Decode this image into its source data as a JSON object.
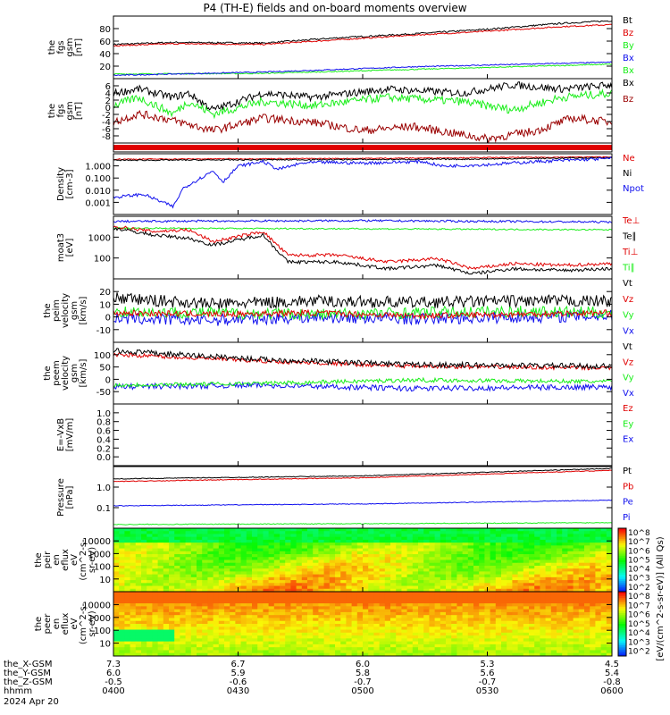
{
  "title": "P4 (TH-E) fields and on-board moments overview",
  "colors": {
    "black": "#000000",
    "red": "#e00000",
    "darkred": "#9a0000",
    "green": "#1aee1a",
    "blue": "#1010ee"
  },
  "chart_data": [
    {
      "id": "p1",
      "type": "line",
      "ylabel": [
        "the",
        "fgs",
        "gsm",
        "[nT]"
      ],
      "yticks": [
        "20",
        "40",
        "60",
        "80"
      ],
      "yrange": [
        0,
        95
      ],
      "legend": [
        {
          "name": "Bt",
          "color": "black"
        },
        {
          "name": "Bz",
          "color": "red"
        },
        {
          "name": "By",
          "color": "green"
        },
        {
          "name": "Bx",
          "color": "blue"
        },
        {
          "name": "Bx",
          "color": "green"
        }
      ],
      "series": [
        {
          "name": "Bt",
          "color": "black",
          "x": [
            0,
            0.12,
            0.3,
            0.45,
            0.6,
            0.75,
            0.9,
            1
          ],
          "y": [
            52,
            55,
            54,
            62,
            68,
            75,
            84,
            88
          ],
          "noise": 1.2
        },
        {
          "name": "Bz",
          "color": "red",
          "x": [
            0,
            0.12,
            0.3,
            0.45,
            0.6,
            0.75,
            0.9,
            1
          ],
          "y": [
            50,
            53,
            52,
            59,
            66,
            72,
            79,
            82
          ],
          "noise": 1.0
        },
        {
          "name": "By",
          "color": "green",
          "x": [
            0,
            0.3,
            0.6,
            1
          ],
          "y": [
            7,
            8,
            14,
            22
          ],
          "noise": 0.8
        },
        {
          "name": "Bx",
          "color": "blue",
          "x": [
            0,
            0.3,
            0.6,
            1
          ],
          "y": [
            5,
            10,
            18,
            25
          ],
          "noise": 0.8
        }
      ]
    },
    {
      "id": "p2",
      "type": "line",
      "ylabel": [
        "the",
        "fgs",
        "gsm",
        "[nT]"
      ],
      "yticks": [
        "-8",
        "-6",
        "-4",
        "-2",
        "0",
        "2",
        "4",
        "6"
      ],
      "yrange": [
        -9,
        6.5
      ],
      "legend": [
        {
          "name": "Bx",
          "color": "black"
        },
        {
          "name": "Bz",
          "color": "darkred"
        }
      ],
      "series": [
        {
          "name": "Bx",
          "color": "black",
          "x": [
            0,
            0.05,
            0.12,
            0.15,
            0.2,
            0.3,
            0.4,
            0.55,
            0.7,
            0.8,
            0.9,
            1
          ],
          "y": [
            3,
            4,
            2,
            3,
            -1,
            3,
            2,
            4,
            3,
            5,
            4,
            5
          ],
          "noise": 0.9
        },
        {
          "name": "By",
          "color": "green",
          "x": [
            0,
            0.05,
            0.12,
            0.15,
            0.2,
            0.3,
            0.4,
            0.55,
            0.7,
            0.8,
            0.9,
            1
          ],
          "y": [
            0,
            2,
            -2,
            1,
            -2,
            1,
            0,
            2,
            1,
            -1,
            2,
            3
          ],
          "noise": 1.0
        },
        {
          "name": "Bz",
          "color": "darkred",
          "x": [
            0,
            0.05,
            0.1,
            0.2,
            0.3,
            0.4,
            0.5,
            0.6,
            0.75,
            0.85,
            0.92,
            1
          ],
          "y": [
            -4,
            -2,
            -3,
            -6,
            -3,
            -4,
            -6,
            -5,
            -8,
            -6,
            -3,
            -4
          ],
          "noise": 1.0
        }
      ]
    },
    {
      "id": "p3",
      "type": "line",
      "ylabel": [],
      "yticks": [],
      "yrange": [
        0,
        1
      ],
      "legend": [],
      "series": [
        {
          "name": "band",
          "color": "red",
          "x": [
            0,
            1
          ],
          "y": [
            0.5,
            0.5
          ],
          "noise": 0
        }
      ]
    },
    {
      "id": "p4",
      "type": "line",
      "scale": "log",
      "ylabel": [
        "Density",
        "[cm-3]"
      ],
      "yticks": [
        "0.001",
        "0.010",
        "0.100",
        "1.000"
      ],
      "yrange": [
        -3.3,
        0.6
      ],
      "legend": [
        {
          "name": "Ne",
          "color": "red"
        },
        {
          "name": "Ni",
          "color": "black"
        },
        {
          "name": "Npot",
          "color": "blue"
        }
      ],
      "series": [
        {
          "name": "Ne",
          "color": "red",
          "x": [
            0,
            0.5,
            1
          ],
          "y": [
            0.25,
            0.3,
            0.4
          ],
          "noise": 0.03
        },
        {
          "name": "Ni",
          "color": "black",
          "x": [
            0,
            0.4,
            0.7,
            1
          ],
          "y": [
            0.18,
            0.22,
            0.25,
            0.35
          ],
          "noise": 0.04
        },
        {
          "name": "Npot",
          "color": "blue",
          "x": [
            0,
            0.06,
            0.12,
            0.14,
            0.2,
            0.22,
            0.25,
            0.3,
            0.33,
            0.38,
            0.42,
            0.5,
            0.62,
            0.66,
            0.75,
            0.85,
            1
          ],
          "y": [
            -2.2,
            -2.0,
            -2.8,
            -1.6,
            -0.5,
            -1.2,
            -0.2,
            0.1,
            -0.4,
            0.0,
            0.05,
            0.0,
            0.1,
            -0.2,
            -0.1,
            0.1,
            0.3
          ],
          "noise": 0.1
        }
      ]
    },
    {
      "id": "p5",
      "type": "line",
      "scale": "log",
      "ylabel": [
        "moat3",
        "[eV]"
      ],
      "yticks": [
        "100",
        "1000"
      ],
      "yrange": [
        1.9,
        3.75
      ],
      "legend": [
        {
          "name": "Te⊥",
          "color": "red"
        },
        {
          "name": "Te∥",
          "color": "black"
        },
        {
          "name": "Ti⊥",
          "color": "red"
        },
        {
          "name": "Ti∥",
          "color": "green"
        }
      ],
      "series": [
        {
          "name": "Ti⊥",
          "color": "blue",
          "x": [
            0,
            0.5,
            1
          ],
          "y": [
            3.6,
            3.62,
            3.58
          ],
          "noise": 0.03
        },
        {
          "name": "Ti∥",
          "color": "green",
          "x": [
            0,
            0.5,
            1
          ],
          "y": [
            3.4,
            3.38,
            3.35
          ],
          "noise": 0.02
        },
        {
          "name": "Te⊥",
          "color": "red",
          "x": [
            0,
            0.08,
            0.15,
            0.2,
            0.3,
            0.35,
            0.45,
            0.55,
            0.65,
            0.72,
            0.8,
            0.9,
            1
          ],
          "y": [
            3.45,
            3.3,
            3.35,
            3.0,
            3.3,
            2.6,
            2.6,
            2.4,
            2.5,
            2.2,
            2.35,
            2.3,
            2.35
          ],
          "noise": 0.05
        },
        {
          "name": "Te∥",
          "color": "black",
          "x": [
            0,
            0.08,
            0.15,
            0.2,
            0.3,
            0.35,
            0.45,
            0.55,
            0.65,
            0.72,
            0.8,
            0.9,
            1
          ],
          "y": [
            3.4,
            3.2,
            3.1,
            2.9,
            3.2,
            2.4,
            2.4,
            2.2,
            2.3,
            2.05,
            2.2,
            2.15,
            2.2
          ],
          "noise": 0.05
        }
      ]
    },
    {
      "id": "p6",
      "type": "line",
      "ylabel": [
        "the",
        "peim",
        "velocity",
        "gsm",
        "[km/s]"
      ],
      "yticks": [
        "-10",
        "0",
        "10",
        "20"
      ],
      "yrange": [
        -18,
        25
      ],
      "legend": [
        {
          "name": "Vt",
          "color": "black"
        },
        {
          "name": "Vz",
          "color": "red"
        },
        {
          "name": "Vy",
          "color": "green"
        },
        {
          "name": "Vx",
          "color": "blue"
        }
      ],
      "series": [
        {
          "name": "Vx",
          "color": "blue",
          "x": [
            0,
            0.2,
            0.4,
            0.6,
            0.8,
            1
          ],
          "y": [
            -2,
            -3,
            -1,
            -2,
            -1,
            0
          ],
          "noise": 4
        },
        {
          "name": "Vy",
          "color": "green",
          "x": [
            0,
            0.2,
            0.4,
            0.6,
            0.8,
            1
          ],
          "y": [
            3,
            2,
            1,
            2,
            3,
            2
          ],
          "noise": 4
        },
        {
          "name": "Vz",
          "color": "red",
          "x": [
            0,
            0.2,
            0.4,
            0.6,
            0.8,
            1
          ],
          "y": [
            2,
            1,
            2,
            0,
            1,
            2
          ],
          "noise": 2
        },
        {
          "name": "Vt",
          "color": "black",
          "x": [
            0,
            0.2,
            0.4,
            0.6,
            0.8,
            1
          ],
          "y": [
            12,
            8,
            10,
            9,
            10,
            10
          ],
          "noise": 4
        }
      ]
    },
    {
      "id": "p7",
      "type": "line",
      "ylabel": [
        "the",
        "peem",
        "velocity",
        "gsm",
        "[km/s]"
      ],
      "yticks": [
        "-50",
        "0",
        "50",
        "100"
      ],
      "yrange": [
        -75,
        105
      ],
      "legend": [
        {
          "name": "Vt",
          "color": "black"
        },
        {
          "name": "Vz",
          "color": "red"
        },
        {
          "name": "Vy",
          "color": "green"
        },
        {
          "name": "Vx",
          "color": "blue"
        }
      ],
      "series": [
        {
          "name": "Vx",
          "color": "blue",
          "x": [
            0,
            0.3,
            0.6,
            1
          ],
          "y": [
            -25,
            -20,
            -30,
            -25
          ],
          "noise": 8
        },
        {
          "name": "Vy",
          "color": "green",
          "x": [
            0,
            0.3,
            0.6,
            1
          ],
          "y": [
            -20,
            -15,
            -5,
            -10
          ],
          "noise": 6
        },
        {
          "name": "Vz",
          "color": "red",
          "x": [
            0,
            0.3,
            0.6,
            1
          ],
          "y": [
            70,
            50,
            35,
            30
          ],
          "noise": 6
        },
        {
          "name": "Vt",
          "color": "black",
          "x": [
            0,
            0.3,
            0.6,
            1
          ],
          "y": [
            80,
            55,
            40,
            35
          ],
          "noise": 8
        }
      ]
    },
    {
      "id": "p8",
      "type": "line",
      "ylabel": [
        "E=-VxB",
        "[mV/m]"
      ],
      "yticks": [
        "0.0",
        "0.2",
        "0.4",
        "0.6",
        "0.8",
        "1.0"
      ],
      "yrange": [
        0,
        1
      ],
      "legend": [
        {
          "name": "Ez",
          "color": "red"
        },
        {
          "name": "Ey",
          "color": "green"
        },
        {
          "name": "Ex",
          "color": "blue"
        }
      ],
      "series": []
    },
    {
      "id": "p9",
      "type": "line",
      "scale": "log",
      "ylabel": [
        "Pressure",
        "[nPa]"
      ],
      "yticks": [
        "0.1",
        "1.0"
      ],
      "yrange": [
        -1.2,
        0.45
      ],
      "legend": [
        {
          "name": "Pt",
          "color": "black"
        },
        {
          "name": "Pb",
          "color": "red"
        },
        {
          "name": "Pe",
          "color": "blue"
        },
        {
          "name": "Pi",
          "color": "blue"
        }
      ],
      "series": [
        {
          "name": "Pt",
          "color": "black",
          "x": [
            0,
            0.5,
            1
          ],
          "y": [
            0.12,
            0.2,
            0.4
          ],
          "noise": 0.01
        },
        {
          "name": "Pb",
          "color": "red",
          "x": [
            0,
            0.5,
            1
          ],
          "y": [
            0.05,
            0.15,
            0.35
          ],
          "noise": 0.01
        },
        {
          "name": "Pe",
          "color": "blue",
          "x": [
            0,
            0.5,
            1
          ],
          "y": [
            -0.6,
            -0.55,
            -0.45
          ],
          "noise": 0.01
        },
        {
          "name": "Pi",
          "color": "green",
          "x": [
            0,
            0.5,
            1
          ],
          "y": [
            -1.1,
            -1.08,
            -1.05
          ],
          "noise": 0.01
        }
      ]
    },
    {
      "id": "p10",
      "type": "heatmap",
      "ylabel": [
        "the",
        "peir",
        "en",
        "eflux",
        "eV",
        "(cm^2-s-",
        "sr-eV)"
      ],
      "yticks": [
        "10",
        "100",
        "1000",
        "10000"
      ],
      "colorbar": [
        "10^8",
        "10^7",
        "10^6",
        "10^5",
        "10^4",
        "10^3",
        "10^2"
      ]
    },
    {
      "id": "p11",
      "type": "heatmap",
      "ylabel": [
        "the",
        "peer",
        "en",
        "eflux",
        "eV",
        "(cm^2-s-",
        "sr-eV)"
      ],
      "yticks": [
        "10",
        "100",
        "1000",
        "10000"
      ],
      "colorbar": [
        "10^8",
        "10^7",
        "10^6",
        "10^5",
        "10^4",
        "10^3",
        "10^2"
      ]
    }
  ],
  "colorbar_label": "[eV/(cm^2-s-sr-eV)] (All Qs)",
  "x_axis": {
    "rows": [
      {
        "label": "the_X-GSM",
        "values": [
          "7.3",
          "6.7",
          "6.0",
          "5.3",
          "4.5"
        ]
      },
      {
        "label": "the_Y-GSM",
        "values": [
          "6.0",
          "5.9",
          "5.8",
          "5.6",
          "5.4"
        ]
      },
      {
        "label": "the_Z-GSM",
        "values": [
          "-0.5",
          "-0.6",
          "-0.7",
          "-0.7",
          "-0.8"
        ]
      },
      {
        "label": "hhmm",
        "values": [
          "0400",
          "0430",
          "0500",
          "0530",
          "0600"
        ]
      }
    ],
    "date": "2024 Apr 20"
  }
}
